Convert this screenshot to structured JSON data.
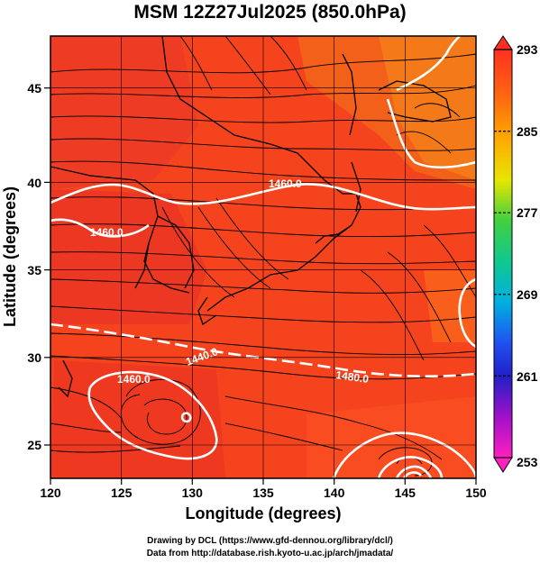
{
  "title": "MSM 12Z27Jul2025 (850.0hPa)",
  "x_axis": {
    "title": "Longitude (degrees)",
    "ticks": [
      "120",
      "125",
      "130",
      "135",
      "140",
      "145",
      "150"
    ]
  },
  "y_axis": {
    "title": "Latitude  (degrees)",
    "ticks": [
      "25",
      "30",
      "35",
      "40",
      "45"
    ]
  },
  "colorbar": {
    "ticks": [
      "293",
      "285",
      "277",
      "269",
      "261",
      "253"
    ]
  },
  "contour_labels": [
    "1460.0",
    "1460.0",
    "1440.0",
    "1480.0",
    "1460.0"
  ],
  "credits": {
    "line1": "Drawing by DCL (https://www.gfd-dennou.org/library/dcl/)",
    "line2": "Data from http://database.rish.kyoto-u.ac.jp/arch/jmadata/"
  },
  "colors": {
    "field_dominant": "#f04020",
    "field_warm": "#ff5522",
    "field_cool": "#e83018",
    "contour": "#ffffff",
    "streamline": "#000000"
  }
}
